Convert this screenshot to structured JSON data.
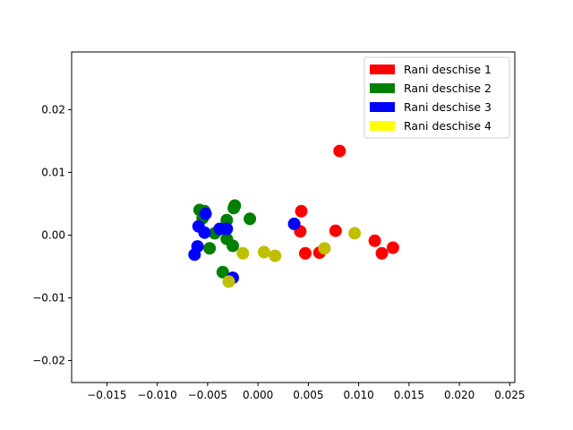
{
  "chart_data": {
    "type": "scatter",
    "title": "",
    "xlabel": "",
    "ylabel": "",
    "xlim": [
      -0.0185,
      0.0255
    ],
    "ylim": [
      -0.0235,
      0.0292
    ],
    "xticks": [
      -0.015,
      -0.01,
      -0.005,
      0.0,
      0.005,
      0.01,
      0.015,
      0.02,
      0.025
    ],
    "xtick_labels": [
      "−0.015",
      "−0.010",
      "−0.005",
      "0.000",
      "0.005",
      "0.010",
      "0.015",
      "0.020",
      "0.025"
    ],
    "yticks": [
      -0.02,
      -0.01,
      0.0,
      0.01,
      0.02
    ],
    "ytick_labels": [
      "−0.02",
      "−0.01",
      "0.00",
      "0.01",
      "0.02"
    ],
    "grid": false,
    "legend": "top-right",
    "series": [
      {
        "name": "Rani deschise 1",
        "color": "#ff0000",
        "legend_color": "#ff0000",
        "points": [
          [
            0.0081,
            0.0134
          ],
          [
            0.0043,
            0.0038
          ],
          [
            0.0042,
            0.0006
          ],
          [
            0.0077,
            0.0007
          ],
          [
            0.0047,
            -0.0029
          ],
          [
            0.0061,
            -0.0028
          ],
          [
            0.0116,
            -0.0009
          ],
          [
            0.0123,
            -0.0029
          ],
          [
            0.0134,
            -0.002
          ]
        ]
      },
      {
        "name": "Rani deschise 2",
        "color": "#008000",
        "legend_color": "#008000",
        "points": [
          [
            -0.0058,
            0.004
          ],
          [
            -0.0053,
            0.0038
          ],
          [
            -0.0024,
            0.0043
          ],
          [
            -0.0023,
            0.0047
          ],
          [
            -0.0031,
            0.0024
          ],
          [
            -0.0008,
            0.0026
          ],
          [
            -0.0055,
            0.0027
          ],
          [
            -0.0043,
            0.0003
          ],
          [
            -0.0031,
            -0.0006
          ],
          [
            -0.0025,
            -0.0017
          ],
          [
            -0.0048,
            -0.0021
          ],
          [
            -0.0035,
            -0.0059
          ]
        ]
      },
      {
        "name": "Rani deschise 3",
        "color": "#0000ff",
        "legend_color": "#0000ff",
        "points": [
          [
            -0.0052,
            0.0034
          ],
          [
            -0.0059,
            0.0014
          ],
          [
            -0.0053,
            0.0004
          ],
          [
            -0.0038,
            0.001
          ],
          [
            -0.0031,
            0.001
          ],
          [
            -0.006,
            -0.0018
          ],
          [
            -0.0063,
            -0.0031
          ],
          [
            0.0036,
            0.0018
          ],
          [
            -0.0025,
            -0.0068
          ]
        ]
      },
      {
        "name": "Rani deschise 4",
        "color": "#bfbf00",
        "legend_color": "#ffff00",
        "points": [
          [
            -0.0015,
            -0.0029
          ],
          [
            0.0006,
            -0.0027
          ],
          [
            0.0017,
            -0.0033
          ],
          [
            0.0066,
            -0.0021
          ],
          [
            0.0096,
            0.0003
          ],
          [
            -0.0029,
            -0.0074
          ]
        ]
      }
    ]
  }
}
